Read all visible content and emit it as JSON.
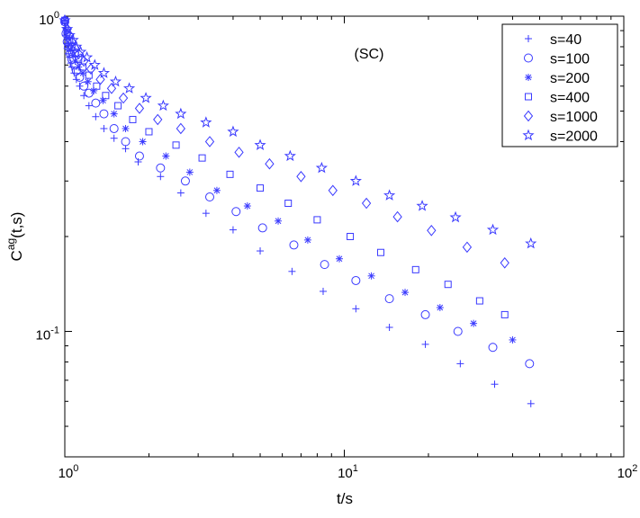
{
  "chart_data": {
    "type": "scatter",
    "title": "",
    "annotation": "(SC)",
    "xlabel": "t/s",
    "ylabel_base": "C",
    "ylabel_sup": "ag",
    "ylabel_rest": "(t,s)",
    "xscale": "log",
    "yscale": "log",
    "xlim": [
      1,
      100
    ],
    "ylim": [
      0.04,
      1
    ],
    "grid": false,
    "legend_position": "top-right",
    "marker_color": "#3a3aff",
    "x_ticks": [
      {
        "value": 1,
        "base": "10",
        "exp": "0"
      },
      {
        "value": 10,
        "base": "10",
        "exp": "1"
      },
      {
        "value": 100,
        "base": "10",
        "exp": "2"
      }
    ],
    "y_ticks": [
      {
        "value": 0.1,
        "base": "10",
        "exp": "-1"
      },
      {
        "value": 1,
        "base": "10",
        "exp": "0"
      }
    ],
    "series": [
      {
        "name": "s=40",
        "marker": "plus",
        "x": [
          1.0,
          1.005,
          1.01,
          1.015,
          1.02,
          1.03,
          1.04,
          1.05,
          1.06,
          1.08,
          1.1,
          1.13,
          1.17,
          1.22,
          1.29,
          1.38,
          1.5,
          1.65,
          1.83,
          2.2,
          2.6,
          3.2,
          4.0,
          5.0,
          6.5,
          8.4,
          11.0,
          14.5,
          19.5,
          26.0,
          34.5,
          46.5
        ],
        "y": [
          0.97,
          0.92,
          0.87,
          0.82,
          0.79,
          0.76,
          0.74,
          0.71,
          0.69,
          0.66,
          0.63,
          0.6,
          0.56,
          0.52,
          0.48,
          0.44,
          0.41,
          0.38,
          0.345,
          0.31,
          0.275,
          0.237,
          0.21,
          0.18,
          0.155,
          0.134,
          0.118,
          0.103,
          0.091,
          0.079,
          0.068,
          0.059
        ]
      },
      {
        "name": "s=100",
        "marker": "circle",
        "x": [
          1.0,
          1.01,
          1.02,
          1.03,
          1.045,
          1.06,
          1.08,
          1.1,
          1.13,
          1.17,
          1.22,
          1.29,
          1.38,
          1.5,
          1.65,
          1.85,
          2.2,
          2.7,
          3.3,
          4.1,
          5.1,
          6.6,
          8.5,
          11.0,
          14.5,
          19.5,
          25.5,
          34.0,
          46.0
        ],
        "y": [
          0.96,
          0.88,
          0.83,
          0.8,
          0.76,
          0.73,
          0.7,
          0.67,
          0.64,
          0.6,
          0.57,
          0.53,
          0.49,
          0.44,
          0.4,
          0.36,
          0.33,
          0.3,
          0.267,
          0.24,
          0.213,
          0.188,
          0.163,
          0.145,
          0.127,
          0.113,
          0.1,
          0.089,
          0.079
        ]
      },
      {
        "name": "s=200",
        "marker": "asterisk",
        "x": [
          1.0,
          1.01,
          1.02,
          1.035,
          1.05,
          1.07,
          1.09,
          1.12,
          1.16,
          1.21,
          1.27,
          1.37,
          1.5,
          1.65,
          1.9,
          2.3,
          2.8,
          3.5,
          4.5,
          5.8,
          7.4,
          9.6,
          12.5,
          16.5,
          22.0,
          29.0,
          40.0
        ],
        "y": [
          0.97,
          0.9,
          0.85,
          0.81,
          0.78,
          0.75,
          0.72,
          0.69,
          0.66,
          0.62,
          0.58,
          0.54,
          0.49,
          0.44,
          0.4,
          0.36,
          0.32,
          0.28,
          0.25,
          0.224,
          0.195,
          0.17,
          0.15,
          0.133,
          0.119,
          0.106,
          0.094
        ]
      },
      {
        "name": "s=400",
        "marker": "square",
        "x": [
          1.0,
          1.02,
          1.04,
          1.06,
          1.09,
          1.12,
          1.16,
          1.22,
          1.3,
          1.4,
          1.55,
          1.75,
          2.0,
          2.5,
          3.1,
          3.9,
          5.0,
          6.3,
          8.0,
          10.5,
          13.5,
          18.0,
          23.5,
          30.5,
          37.5
        ],
        "y": [
          0.97,
          0.89,
          0.84,
          0.8,
          0.76,
          0.73,
          0.69,
          0.65,
          0.6,
          0.56,
          0.52,
          0.47,
          0.43,
          0.39,
          0.355,
          0.315,
          0.285,
          0.255,
          0.226,
          0.2,
          0.178,
          0.157,
          0.141,
          0.125,
          0.113
        ]
      },
      {
        "name": "s=1000",
        "marker": "diamond",
        "x": [
          1.0,
          1.02,
          1.04,
          1.06,
          1.09,
          1.12,
          1.17,
          1.24,
          1.34,
          1.47,
          1.62,
          1.85,
          2.15,
          2.6,
          3.3,
          4.2,
          5.4,
          7.0,
          9.1,
          12.0,
          15.5,
          20.5,
          27.5,
          37.5
        ],
        "y": [
          0.97,
          0.91,
          0.87,
          0.83,
          0.79,
          0.76,
          0.72,
          0.68,
          0.63,
          0.59,
          0.55,
          0.51,
          0.47,
          0.44,
          0.4,
          0.37,
          0.34,
          0.31,
          0.28,
          0.255,
          0.231,
          0.209,
          0.185,
          0.165
        ]
      },
      {
        "name": "s=2000",
        "marker": "star",
        "x": [
          1.0,
          1.02,
          1.04,
          1.07,
          1.1,
          1.14,
          1.2,
          1.28,
          1.38,
          1.52,
          1.7,
          1.95,
          2.25,
          2.6,
          3.2,
          4.0,
          5.0,
          6.4,
          8.3,
          11.0,
          14.5,
          19.0,
          25.0,
          34.0,
          46.5
        ],
        "y": [
          0.97,
          0.91,
          0.87,
          0.84,
          0.8,
          0.77,
          0.74,
          0.7,
          0.66,
          0.62,
          0.59,
          0.55,
          0.52,
          0.49,
          0.46,
          0.43,
          0.39,
          0.36,
          0.33,
          0.3,
          0.27,
          0.25,
          0.23,
          0.21,
          0.19
        ]
      }
    ]
  }
}
